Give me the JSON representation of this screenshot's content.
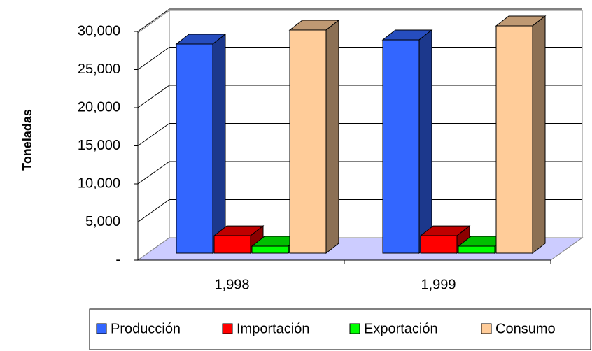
{
  "chart_data": {
    "type": "bar3d",
    "y_label": "Toneladas",
    "categories": [
      "1,998",
      "1,999"
    ],
    "series": [
      {
        "name": "Producción",
        "color": "#3366ff",
        "values": [
          27600,
          28150
        ]
      },
      {
        "name": "Importación",
        "color": "#ff0000",
        "values": [
          2300,
          2300
        ]
      },
      {
        "name": "Exportación",
        "color": "#00ff00",
        "values": [
          920,
          920
        ]
      },
      {
        "name": "Consumo",
        "color": "#ffcc99",
        "values": [
          29450,
          30000
        ]
      }
    ],
    "ylim": [
      0,
      30000
    ],
    "yticks": [
      {
        "value": 0,
        "label": "-"
      },
      {
        "value": 5000,
        "label": "5,000"
      },
      {
        "value": 10000,
        "label": "10,000"
      },
      {
        "value": 15000,
        "label": "15,000"
      },
      {
        "value": 20000,
        "label": "20,000"
      },
      {
        "value": 25000,
        "label": "25,000"
      },
      {
        "value": 30000,
        "label": "30,000"
      }
    ],
    "grid": true
  }
}
